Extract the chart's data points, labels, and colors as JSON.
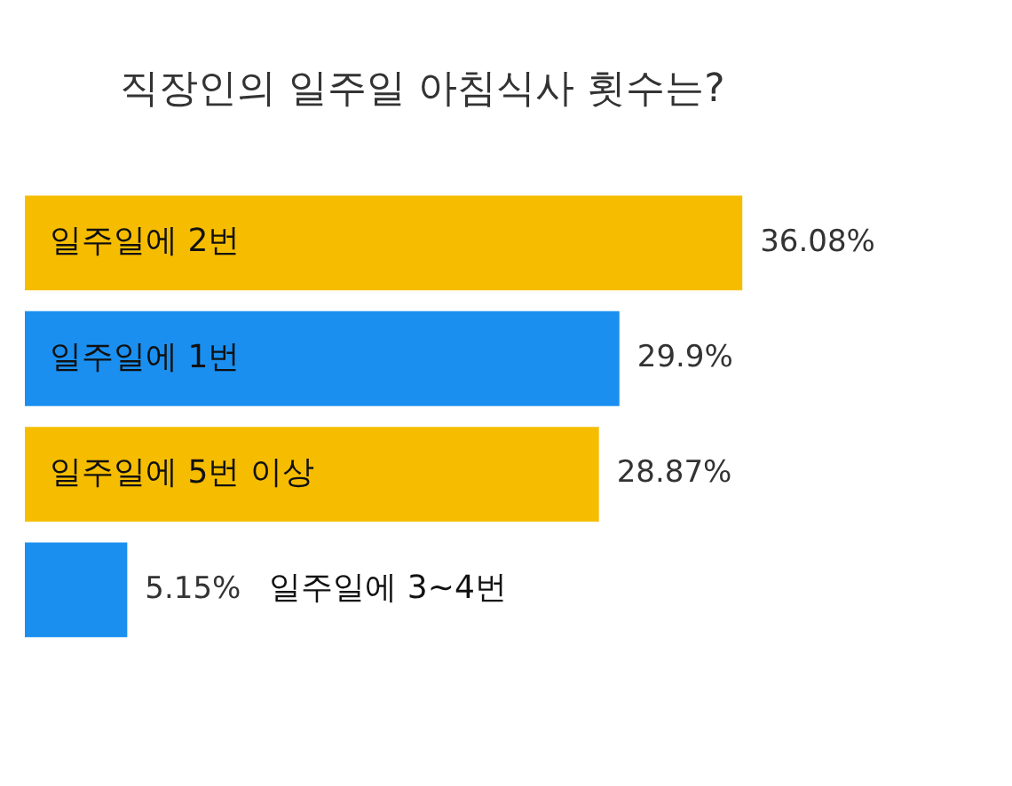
{
  "chart_data": {
    "type": "bar",
    "orientation": "horizontal",
    "title": "직장인의 일주일 아침식사 횟수는?",
    "categories": [
      "일주일에 2번",
      "일주일에 1번",
      "일주일에 5번 이상",
      "일주일에 3~4번"
    ],
    "values": [
      36.08,
      29.9,
      28.87,
      5.15
    ],
    "colors": [
      "#f6bd00",
      "#1a8ff0",
      "#f6bd00",
      "#1a8ff0"
    ],
    "value_labels": [
      "36.08%",
      "29.9%",
      "28.87%",
      "5.15%"
    ],
    "legend": false
  }
}
